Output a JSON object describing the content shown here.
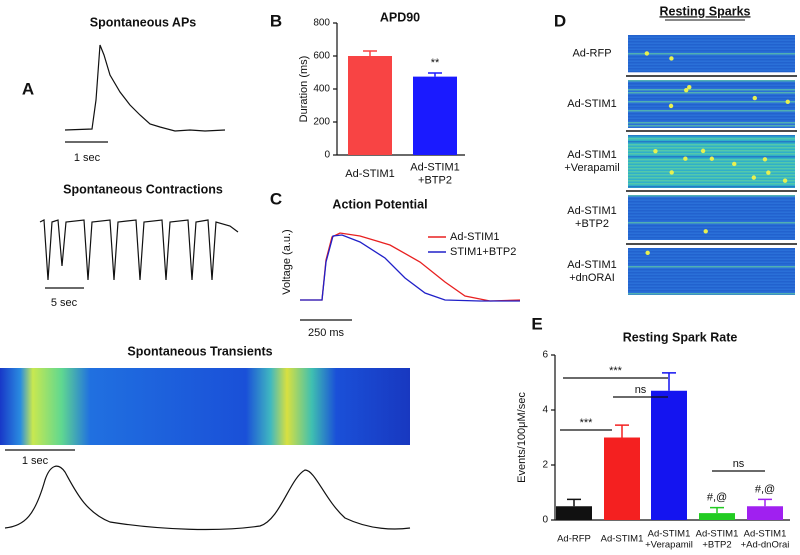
{
  "panel_a": {
    "letter": "A",
    "aps_title": "Spontaneous APs",
    "aps_scale": "1 sec",
    "contractions_title": "Spontaneous Contractions",
    "contractions_scale": "5 sec",
    "transients_title": "Spontaneous Transients",
    "transients_scale": "1 sec"
  },
  "panel_c": {
    "letter": "C",
    "title": "Action Potential",
    "y_label": "Voltage (a.u.)",
    "legend": [
      {
        "name": "Ad-STIM1",
        "color": "#e82020"
      },
      {
        "name": "STIM1+BTP2",
        "color": "#2020c8"
      }
    ],
    "scale": "250 ms"
  },
  "panel_d": {
    "letter": "D",
    "title": "Resting Sparks",
    "rows": [
      "Ad-RFP",
      "Ad-STIM1",
      "Ad-STIM1\n+Verapamil",
      "Ad-STIM1\n+BTP2",
      "Ad-STIM1\n+dnORAI"
    ]
  },
  "chart_data": [
    {
      "type": "bar",
      "letter": "B",
      "title": "APD90",
      "y_label": "Duration (ms)",
      "categories": [
        "Ad-STIM1",
        "Ad-STIM1\n+BTP2"
      ],
      "values": [
        600,
        475
      ],
      "errors": [
        30,
        22
      ],
      "colors": [
        "#f84444",
        "#1a1aff"
      ],
      "ylim": [
        0,
        800
      ],
      "yticks": [
        0,
        200,
        400,
        600,
        800
      ],
      "annotations": [
        "**"
      ]
    },
    {
      "type": "bar",
      "letter": "E",
      "title": "Resting Spark Rate",
      "y_label": "Events/100μM/sec",
      "categories": [
        "Ad-RFP",
        "Ad-STIM1",
        "Ad-STIM1\n+Verapamil",
        "Ad-STIM1\n+BTP2",
        "Ad-STIM1\n+Ad-dnOrai"
      ],
      "values": [
        0.5,
        3.0,
        4.7,
        0.25,
        0.5
      ],
      "errors": [
        0.25,
        0.45,
        0.65,
        0.2,
        0.25
      ],
      "colors": [
        "#111111",
        "#f42020",
        "#1414f0",
        "#22cc22",
        "#a020f0"
      ],
      "ylim": [
        0,
        6
      ],
      "yticks": [
        0,
        2,
        4,
        6
      ],
      "significance": [
        "***",
        "***",
        "ns",
        "ns"
      ],
      "annotations": [
        "#,@",
        "#,@"
      ]
    }
  ]
}
